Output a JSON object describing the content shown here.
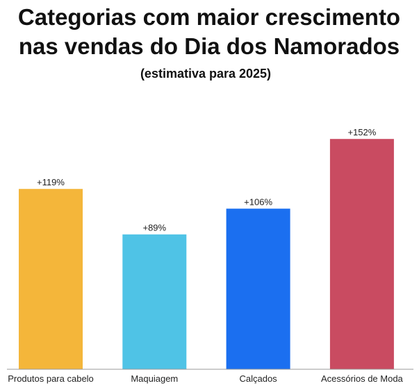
{
  "chart_data": {
    "type": "bar",
    "title_lines": [
      "Categorias com maior crescimento",
      "nas vendas do Dia dos Namorados"
    ],
    "subtitle": "(estimativa para 2025)",
    "categories": [
      "Produtos para cabelo",
      "Maquiagem",
      "Calçados",
      "Acessórios de Moda"
    ],
    "values": [
      119,
      89,
      106,
      152
    ],
    "value_labels": [
      "+119%",
      "+89%",
      "+106%",
      "+152%"
    ],
    "colors": [
      "#F4B63A",
      "#4FC3E6",
      "#1B6FF0",
      "#C94B61"
    ],
    "unit": "%",
    "xlabel": "",
    "ylabel": "",
    "ylim": [
      0,
      175
    ],
    "grid": false,
    "legend": "none"
  }
}
